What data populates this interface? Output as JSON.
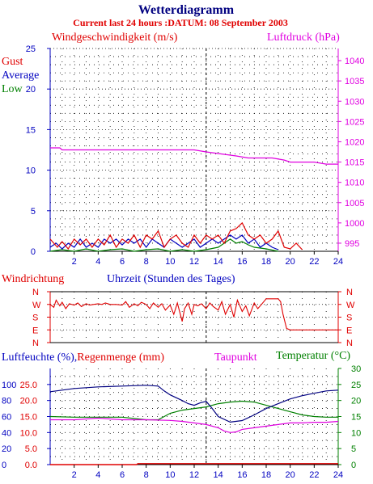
{
  "header": {
    "title": "Wetterdiagramm",
    "subtitle": "Current last 24 hours :DATUM: 08 September 2003"
  },
  "colors": {
    "red": "#e00000",
    "blue": "#0000c0",
    "green": "#008000",
    "magenta": "#e000e0",
    "navy": "#000080",
    "black": "#000000"
  },
  "chart_data": [
    {
      "type": "line",
      "panel": "wind",
      "title": "",
      "ylabel": "Windgeschwindigkeit (m/s)",
      "y2label": "Luftdruck (hPa)",
      "xlabel": "",
      "legend": [
        "Gust",
        "Average",
        "Low"
      ],
      "xlim": [
        0,
        24
      ],
      "ylim": [
        0,
        25
      ],
      "y2lim": [
        993,
        1043
      ],
      "xticks": [
        2,
        4,
        6,
        8,
        10,
        12,
        14,
        16,
        18,
        20,
        22,
        24
      ],
      "yticks": [
        0,
        5,
        10,
        15,
        20,
        25
      ],
      "y2ticks": [
        995,
        1000,
        1005,
        1010,
        1015,
        1020,
        1025,
        1030,
        1035,
        1040
      ],
      "grid": true,
      "marker_hour": 13,
      "series": [
        {
          "name": "Luftdruck",
          "axis": "right",
          "x": [
            0,
            0.8,
            1,
            4,
            8,
            12,
            13,
            15.5,
            16.5,
            18.5,
            19.5,
            20,
            21,
            22,
            23,
            24
          ],
          "y": [
            1018.5,
            1018.5,
            1018,
            1018,
            1018,
            1018,
            1017.5,
            1016.5,
            1016,
            1016,
            1015.5,
            1015,
            1015,
            1015,
            1014.5,
            1014.5
          ]
        },
        {
          "name": "Gust",
          "x": [
            0,
            0.6,
            1,
            1.5,
            2,
            2.5,
            3,
            3.5,
            4,
            4.5,
            5,
            5.5,
            6,
            6.5,
            7,
            7.5,
            8,
            8.5,
            9,
            9.5,
            10,
            10.5,
            11,
            11.5,
            12,
            12.5,
            13,
            13.5,
            14,
            14.5,
            15,
            15.5,
            16,
            16.5,
            17,
            17.5,
            18,
            18.5,
            19,
            19.5,
            20,
            20.5,
            21
          ],
          "y": [
            1.5,
            0.5,
            1.2,
            0.3,
            1.5,
            0.8,
            1.5,
            0.5,
            1.5,
            0.8,
            2,
            0.5,
            1.5,
            1,
            2,
            0.5,
            2,
            1.5,
            2.5,
            0.5,
            1.5,
            2,
            1,
            0.5,
            2,
            1,
            2,
            1.5,
            2,
            1,
            2.5,
            2.8,
            3.5,
            2,
            1.5,
            2,
            1,
            1.5,
            2.5,
            0.5,
            0.3,
            1,
            0.2
          ]
        },
        {
          "name": "Average",
          "x": [
            0,
            0.5,
            1,
            1.5,
            2,
            2.5,
            3,
            3.5,
            4,
            4.5,
            5,
            5.5,
            6,
            6.5,
            7,
            7.5,
            8,
            8.5,
            9,
            9.5,
            10,
            10.5,
            11,
            11.5,
            12,
            12.5,
            13,
            13.5,
            14,
            14.5,
            15,
            15.5,
            16,
            16.5,
            17,
            17.5,
            18,
            18.5,
            19
          ],
          "y": [
            0.5,
            1,
            0.3,
            1,
            0.5,
            1.5,
            0.5,
            1,
            0.5,
            1.5,
            1,
            1.5,
            0.8,
            1.5,
            1,
            1.5,
            0.5,
            1.5,
            1,
            0.5,
            1.5,
            1,
            0.5,
            1,
            1.5,
            0.5,
            1,
            1.5,
            1,
            1.5,
            2,
            1.5,
            2,
            1,
            1.5,
            0.5,
            1,
            0.5,
            0.2
          ]
        },
        {
          "name": "Low",
          "x": [
            0,
            1,
            2,
            3,
            4,
            5,
            6,
            7,
            8,
            9,
            10,
            11,
            12,
            13,
            14,
            14.5,
            15,
            15.5,
            16,
            16.5,
            17,
            18,
            19
          ],
          "y": [
            0,
            0.2,
            0,
            0.3,
            0,
            0.2,
            0.3,
            0,
            0.2,
            0.3,
            0,
            0.2,
            0,
            0.2,
            0.5,
            1,
            1.5,
            1,
            1.2,
            0.8,
            0.5,
            0.3,
            0
          ]
        }
      ]
    },
    {
      "type": "line",
      "panel": "direction",
      "title": "",
      "ylabel": "Windrichtung",
      "xlabel": "Uhrzeit (Stunden des Tages)",
      "xlim": [
        0,
        24
      ],
      "yticklabels": [
        "N",
        "W",
        "S",
        "E",
        "N"
      ],
      "grid": true,
      "marker_hour": 13,
      "series": [
        {
          "name": "Windrichtung",
          "x": [
            0,
            0.3,
            0.5,
            0.8,
            1,
            1.3,
            1.6,
            2,
            2.3,
            2.6,
            3,
            3.3,
            3.6,
            4,
            4.3,
            4.6,
            5,
            5.5,
            6,
            6.3,
            6.6,
            7,
            7.3,
            7.6,
            8,
            8.3,
            8.6,
            9,
            9.3,
            9.6,
            10,
            10.3,
            10.6,
            11,
            11.2,
            11.5,
            11.8,
            12,
            12.3,
            12.6,
            13,
            13.3,
            13.6,
            14,
            14.3,
            14.6,
            15,
            15.3,
            15.6,
            16,
            16.3,
            16.6,
            17,
            17.3,
            17.6,
            18,
            18.5,
            19,
            19.2,
            19.4,
            19.7,
            20,
            21,
            22,
            23,
            24
          ],
          "y": [
            270,
            250,
            300,
            260,
            285,
            240,
            275,
            265,
            280,
            255,
            275,
            265,
            270,
            275,
            270,
            280,
            270,
            270,
            265,
            290,
            250,
            275,
            260,
            285,
            270,
            240,
            280,
            250,
            275,
            230,
            265,
            200,
            280,
            150,
            240,
            280,
            200,
            270,
            260,
            275,
            240,
            280,
            255,
            230,
            290,
            200,
            270,
            180,
            300,
            220,
            260,
            190,
            280,
            240,
            270,
            310,
            310,
            310,
            290,
            200,
            100,
            90,
            90,
            90,
            90,
            90
          ]
        }
      ]
    },
    {
      "type": "line",
      "panel": "climate",
      "title": "",
      "ylabel": "Luftfeuchte (%),Regenmenge (mm)",
      "y2label": "Temperatur (°C)",
      "legend": [
        "Taupunkt"
      ],
      "xlim": [
        0,
        24
      ],
      "ylim_humidity": [
        0,
        120
      ],
      "ylim_rain": [
        0,
        30
      ],
      "y2lim": [
        0,
        30
      ],
      "xticks": [
        2,
        4,
        6,
        8,
        10,
        12,
        14,
        16,
        18,
        20,
        22,
        24
      ],
      "yticks_humidity": [
        0,
        20,
        40,
        60,
        80,
        100
      ],
      "yticks_rain": [
        0.0,
        5.0,
        10.0,
        15.0,
        20.0,
        25.0
      ],
      "y2ticks": [
        0,
        5,
        10,
        15,
        20,
        25,
        30
      ],
      "grid": true,
      "marker_hour": 13,
      "series": [
        {
          "name": "Luftfeuchte",
          "axis": "humidity",
          "x": [
            0,
            2,
            4,
            6,
            8,
            9,
            9.5,
            10,
            11,
            11.5,
            12,
            12.5,
            13,
            13.5,
            14,
            15,
            16,
            17,
            18,
            19,
            20,
            21,
            22,
            23,
            24
          ],
          "y": [
            91,
            95,
            97,
            98,
            99,
            98,
            92,
            87,
            80,
            76,
            74,
            77,
            79,
            70,
            60,
            53,
            55,
            62,
            70,
            76,
            82,
            86,
            89,
            92,
            93
          ]
        },
        {
          "name": "Temperatur",
          "axis": "temperature",
          "x": [
            0,
            2,
            4,
            6,
            8,
            9,
            10,
            11,
            12,
            13,
            14,
            15,
            16,
            17,
            18,
            19,
            20,
            21,
            22,
            23,
            24
          ],
          "y": [
            15,
            14.8,
            14.8,
            14.8,
            14,
            14,
            16,
            17,
            17.5,
            18,
            19,
            19.5,
            19.8,
            19.5,
            18.5,
            17.5,
            16.5,
            15.5,
            15,
            14.8,
            14.8
          ]
        },
        {
          "name": "Taupunkt",
          "axis": "temperature",
          "x": [
            0,
            2,
            4,
            6,
            8,
            10,
            11,
            12,
            13,
            14,
            14.5,
            15,
            15.5,
            16,
            17,
            18,
            19,
            20,
            21,
            22,
            23,
            24
          ],
          "y": [
            14,
            14,
            14.5,
            14,
            14,
            13.8,
            13.5,
            13,
            12.5,
            11.5,
            10.5,
            10,
            10.2,
            11,
            11.5,
            12,
            12.5,
            13,
            13,
            13.2,
            13.2,
            13.5
          ]
        },
        {
          "name": "Regenmenge",
          "axis": "rain",
          "x": [
            0,
            7.2,
            7.3,
            24
          ],
          "y": [
            0,
            0,
            0.3,
            0.3
          ]
        }
      ]
    }
  ]
}
